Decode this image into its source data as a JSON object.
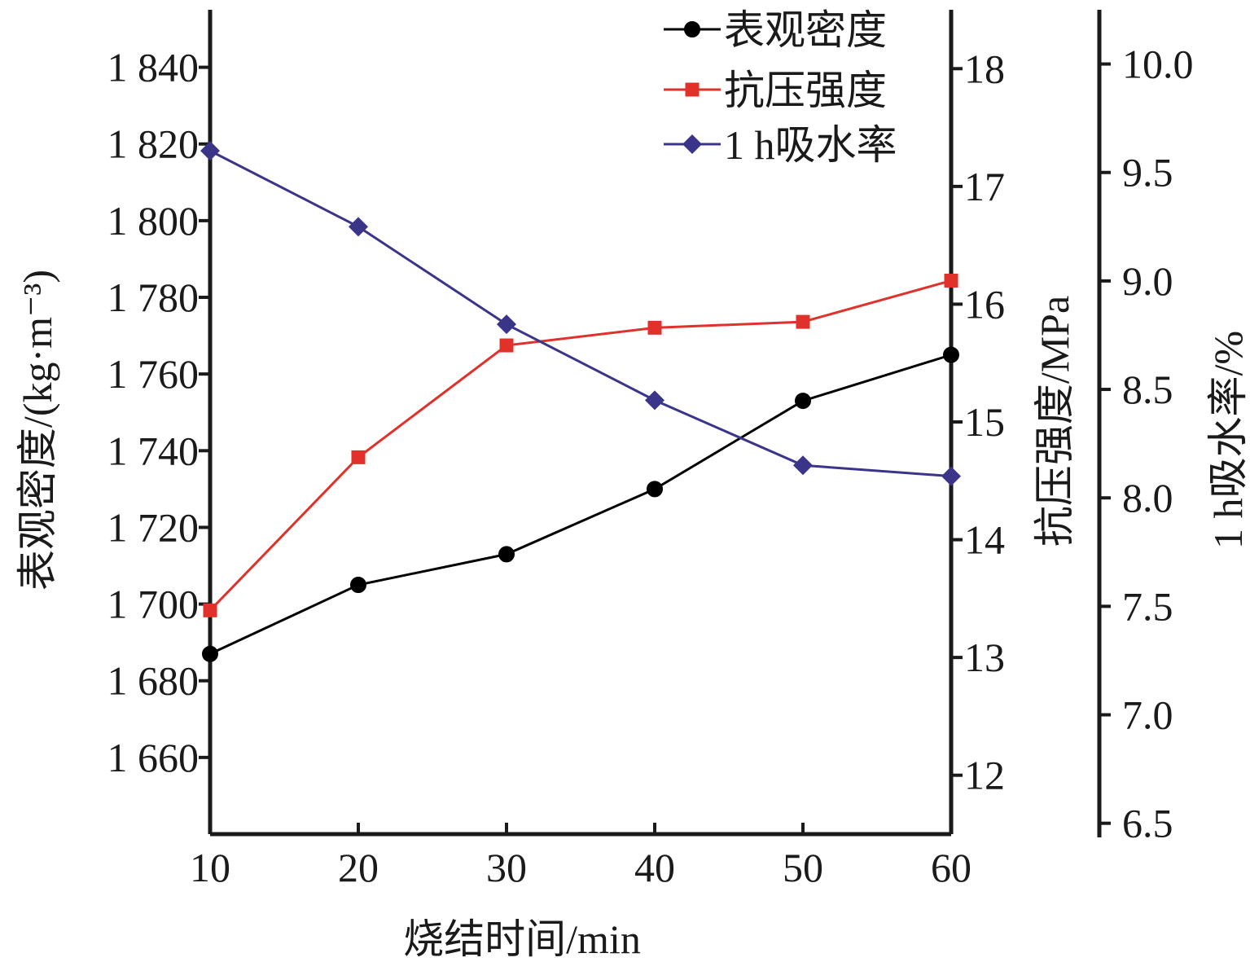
{
  "chart_data": {
    "type": "line",
    "x": [
      10,
      20,
      30,
      40,
      50,
      60
    ],
    "xlabel": "烧结时间/min",
    "xlim": [
      10,
      60
    ],
    "x_ticks": [
      "10",
      "20",
      "30",
      "40",
      "50",
      "60"
    ],
    "axes": {
      "left": {
        "label": "表观密度/(kg·m⁻³)",
        "ylim": [
          1640,
          1855
        ],
        "ticks": [
          1660,
          1680,
          1700,
          1720,
          1740,
          1760,
          1780,
          1800,
          1820,
          1840
        ],
        "tick_labels": [
          "1 660",
          "1 680",
          "1 700",
          "1 720",
          "1 740",
          "1 760",
          "1 780",
          "1 800",
          "1 820",
          "1 840"
        ]
      },
      "right1": {
        "label": "抗压强度/MPa",
        "ylim": [
          11.5,
          18.5
        ],
        "ticks": [
          12,
          13,
          14,
          15,
          16,
          17,
          18
        ],
        "tick_labels": [
          "12",
          "13",
          "14",
          "15",
          "16",
          "17",
          "18"
        ]
      },
      "right2": {
        "label": "1 h吸水率/%",
        "ylim": [
          6.45,
          10.25
        ],
        "ticks": [
          6.5,
          7.0,
          7.5,
          8.0,
          8.5,
          9.0,
          9.5,
          10.0
        ],
        "tick_labels": [
          "6.5",
          "7.0",
          "7.5",
          "8.0",
          "8.5",
          "9.0",
          "9.5",
          "10.0"
        ]
      }
    },
    "series": [
      {
        "name": "表观密度",
        "axis": "left",
        "color": "#000000",
        "marker": "circle",
        "values": [
          1687,
          1705,
          1713,
          1730,
          1753,
          1765
        ]
      },
      {
        "name": "抗压强度",
        "axis": "right1",
        "color": "#e0312a",
        "marker": "square",
        "values": [
          13.4,
          14.7,
          15.65,
          15.8,
          15.85,
          16.2
        ]
      },
      {
        "name": "1 h吸水率",
        "axis": "right2",
        "color": "#3b3589",
        "marker": "diamond",
        "values": [
          9.6,
          9.25,
          8.8,
          8.45,
          8.15,
          8.1
        ]
      }
    ],
    "legend": "top-right",
    "grid": false
  }
}
